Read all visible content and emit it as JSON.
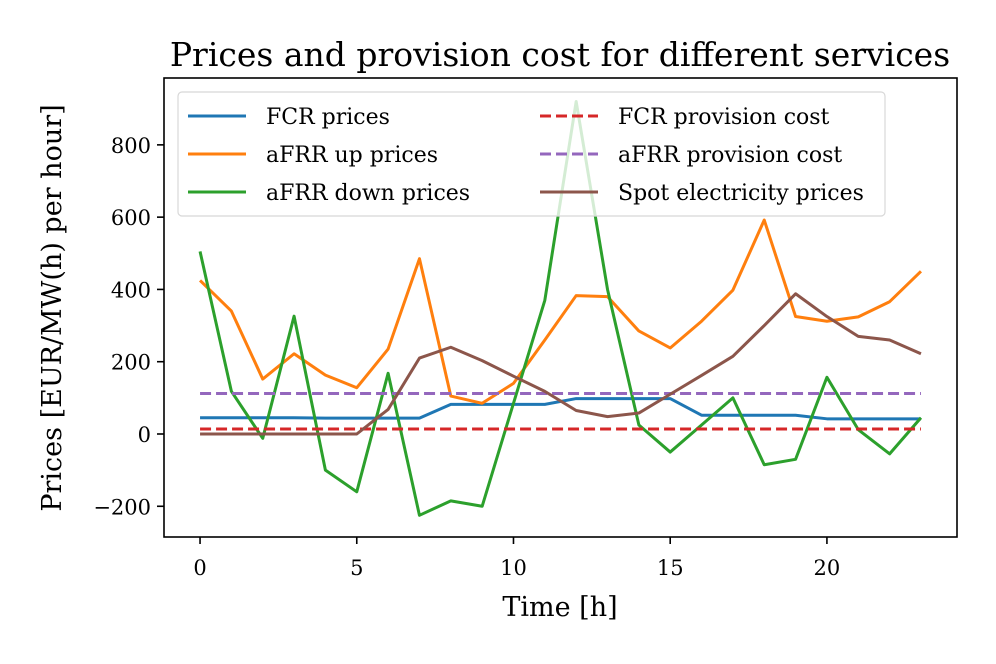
{
  "chart_data": {
    "type": "line",
    "title": "Prices and provision cost for different services",
    "xlabel": "Time [h]",
    "ylabel": "Prices [EUR/MW(h) per hour]",
    "xlim": [
      -1.15,
      24.15
    ],
    "ylim": [
      -285,
      985
    ],
    "x_ticks": [
      0,
      5,
      10,
      15,
      20
    ],
    "x_tick_labels": [
      "0",
      "5",
      "10",
      "15",
      "20"
    ],
    "y_ticks": [
      -200,
      0,
      200,
      400,
      600,
      800
    ],
    "y_tick_labels": [
      "−200",
      "0",
      "200",
      "400",
      "600",
      "800"
    ],
    "grid": false,
    "legend": {
      "placement": "top-left",
      "columns": 2
    },
    "x": [
      0,
      1,
      2,
      3,
      4,
      5,
      6,
      7,
      8,
      9,
      10,
      11,
      12,
      13,
      14,
      15,
      16,
      17,
      18,
      19,
      20,
      21,
      22,
      23
    ],
    "series": [
      {
        "name": "FCR prices",
        "color": "#1f77b4",
        "style": "solid",
        "values": [
          45,
          45,
          45,
          45,
          44,
          44,
          44,
          44,
          82,
          82,
          82,
          82,
          98,
          98,
          98,
          98,
          52,
          52,
          52,
          52,
          42,
          42,
          42,
          42
        ]
      },
      {
        "name": "aFRR up prices",
        "color": "#ff7f0e",
        "style": "solid",
        "values": [
          425,
          340,
          152,
          222,
          163,
          128,
          235,
          485,
          105,
          85,
          140,
          260,
          383,
          380,
          285,
          238,
          312,
          398,
          592,
          325,
          312,
          324,
          366,
          450
        ]
      },
      {
        "name": "aFRR down prices",
        "color": "#2ca02c",
        "style": "solid",
        "values": [
          505,
          118,
          -12,
          326,
          -100,
          -160,
          168,
          -225,
          -185,
          -200,
          85,
          370,
          920,
          400,
          25,
          -50,
          25,
          100,
          -85,
          -70,
          157,
          12,
          -55,
          45
        ]
      },
      {
        "name": "FCR provision cost",
        "color": "#d62728",
        "style": "dashed",
        "values": [
          14,
          14,
          14,
          14,
          14,
          14,
          14,
          14,
          14,
          14,
          14,
          14,
          14,
          14,
          14,
          14,
          14,
          14,
          14,
          14,
          14,
          14,
          14,
          14
        ]
      },
      {
        "name": "aFRR provision cost",
        "color": "#9467bd",
        "style": "dashed",
        "values": [
          112,
          112,
          112,
          112,
          112,
          112,
          112,
          112,
          112,
          112,
          112,
          112,
          112,
          112,
          112,
          112,
          112,
          112,
          112,
          112,
          112,
          112,
          112,
          112
        ]
      },
      {
        "name": "Spot electricity prices",
        "color": "#8c564b",
        "style": "solid",
        "values": [
          0,
          0,
          0,
          0,
          0,
          0,
          68,
          210,
          240,
          203,
          160,
          118,
          65,
          48,
          58,
          110,
          162,
          215,
          300,
          388,
          325,
          270,
          260,
          222
        ]
      }
    ]
  }
}
